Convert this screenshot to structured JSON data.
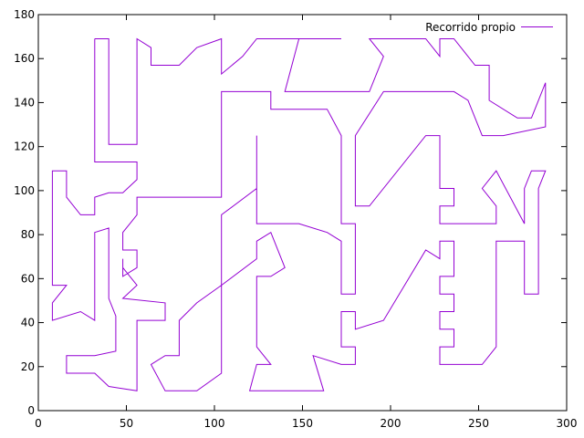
{
  "chart_data": {
    "type": "line",
    "title": "",
    "xlabel": "",
    "ylabel": "",
    "xlim": [
      0,
      300
    ],
    "ylim": [
      0,
      180
    ],
    "xticks": [
      0,
      50,
      100,
      150,
      200,
      250,
      300
    ],
    "yticks": [
      0,
      20,
      40,
      60,
      80,
      100,
      120,
      140,
      160,
      180
    ],
    "grid": false,
    "legend_position": "top-right",
    "series": [
      {
        "name": "Recorrido propio",
        "color": "#9400d3",
        "points": [
          [
            32,
            169
          ],
          [
            40,
            169
          ],
          [
            40,
            121
          ],
          [
            56,
            121
          ],
          [
            56,
            169
          ],
          [
            64,
            165
          ],
          [
            64,
            157
          ],
          [
            80,
            157
          ],
          [
            90,
            165
          ],
          [
            104,
            169
          ],
          [
            104,
            153
          ],
          [
            116,
            161
          ],
          [
            124,
            169
          ],
          [
            172,
            169
          ],
          [
            148,
            169
          ],
          [
            140,
            145
          ],
          [
            188,
            145
          ],
          [
            196,
            161
          ],
          [
            188,
            169
          ],
          [
            220,
            169
          ],
          [
            228,
            161
          ],
          [
            228,
            169
          ],
          [
            236,
            169
          ],
          [
            248,
            157
          ],
          [
            256,
            157
          ],
          [
            256,
            141
          ],
          [
            272,
            133
          ],
          [
            280,
            133
          ],
          [
            288,
            149
          ],
          [
            288,
            129
          ],
          [
            264,
            125
          ],
          [
            252,
            125
          ],
          [
            244,
            141
          ],
          [
            236,
            145
          ],
          [
            196,
            145
          ],
          [
            180,
            125
          ],
          [
            180,
            93
          ],
          [
            188,
            93
          ],
          [
            220,
            125
          ],
          [
            228,
            125
          ],
          [
            228,
            101
          ],
          [
            236,
            101
          ],
          [
            236,
            93
          ],
          [
            228,
            93
          ],
          [
            228,
            85
          ],
          [
            260,
            85
          ],
          [
            260,
            93
          ],
          [
            252,
            101
          ],
          [
            260,
            109
          ],
          [
            276,
            85
          ],
          [
            276,
            101
          ],
          [
            280,
            109
          ],
          [
            288,
            109
          ],
          [
            284,
            101
          ],
          [
            284,
            53
          ],
          [
            276,
            53
          ],
          [
            276,
            77
          ],
          [
            260,
            77
          ],
          [
            260,
            29
          ],
          [
            252,
            21
          ],
          [
            228,
            21
          ],
          [
            228,
            29
          ],
          [
            236,
            29
          ],
          [
            236,
            37
          ],
          [
            228,
            37
          ],
          [
            228,
            45
          ],
          [
            236,
            45
          ],
          [
            236,
            53
          ],
          [
            228,
            53
          ],
          [
            228,
            61
          ],
          [
            236,
            61
          ],
          [
            236,
            77
          ],
          [
            228,
            77
          ],
          [
            228,
            69
          ],
          [
            220,
            73
          ],
          [
            196,
            41
          ],
          [
            180,
            37
          ],
          [
            180,
            45
          ],
          [
            172,
            45
          ],
          [
            172,
            29
          ],
          [
            180,
            29
          ],
          [
            180,
            21
          ],
          [
            172,
            21
          ],
          [
            156,
            25
          ],
          [
            162,
            9
          ],
          [
            120,
            9
          ],
          [
            124,
            21
          ],
          [
            132,
            21
          ],
          [
            124,
            29
          ],
          [
            124,
            61
          ],
          [
            132,
            61
          ],
          [
            140,
            65
          ],
          [
            132,
            81
          ],
          [
            124,
            77
          ],
          [
            124,
            69
          ],
          [
            104,
            57
          ],
          [
            90,
            49
          ],
          [
            80,
            41
          ],
          [
            80,
            25
          ],
          [
            72,
            25
          ],
          [
            64,
            21
          ],
          [
            72,
            9
          ],
          [
            90,
            9
          ],
          [
            104,
            17
          ],
          [
            104,
            89
          ],
          [
            124,
            101
          ],
          [
            124,
            125
          ],
          [
            124,
            85
          ],
          [
            148,
            85
          ],
          [
            164,
            81
          ],
          [
            172,
            77
          ],
          [
            172,
            53
          ],
          [
            180,
            53
          ],
          [
            180,
            85
          ],
          [
            172,
            85
          ],
          [
            172,
            125
          ],
          [
            164,
            137
          ],
          [
            132,
            137
          ],
          [
            132,
            145
          ],
          [
            104,
            145
          ],
          [
            104,
            97
          ],
          [
            56,
            97
          ],
          [
            56,
            89
          ],
          [
            52,
            85
          ],
          [
            48,
            81
          ],
          [
            48,
            73
          ],
          [
            56,
            73
          ],
          [
            56,
            65
          ],
          [
            48,
            61
          ],
          [
            48,
            69
          ],
          [
            48,
            65
          ],
          [
            56,
            57
          ],
          [
            48,
            51
          ],
          [
            72,
            49
          ],
          [
            72,
            41
          ],
          [
            56,
            41
          ],
          [
            56,
            9
          ],
          [
            40,
            11
          ],
          [
            32,
            17
          ],
          [
            16,
            17
          ],
          [
            16,
            25
          ],
          [
            32,
            25
          ],
          [
            44,
            27
          ],
          [
            44,
            43
          ],
          [
            40,
            51
          ],
          [
            40,
            83
          ],
          [
            32,
            81
          ],
          [
            32,
            41
          ],
          [
            24,
            45
          ],
          [
            8,
            41
          ],
          [
            8,
            49
          ],
          [
            16,
            57
          ],
          [
            8,
            57
          ],
          [
            8,
            109
          ],
          [
            16,
            109
          ],
          [
            16,
            97
          ],
          [
            24,
            89
          ],
          [
            32,
            89
          ],
          [
            32,
            97
          ],
          [
            40,
            99
          ],
          [
            48,
            99
          ],
          [
            56,
            105
          ],
          [
            56,
            113
          ],
          [
            32,
            113
          ],
          [
            32,
            169
          ]
        ]
      }
    ]
  }
}
